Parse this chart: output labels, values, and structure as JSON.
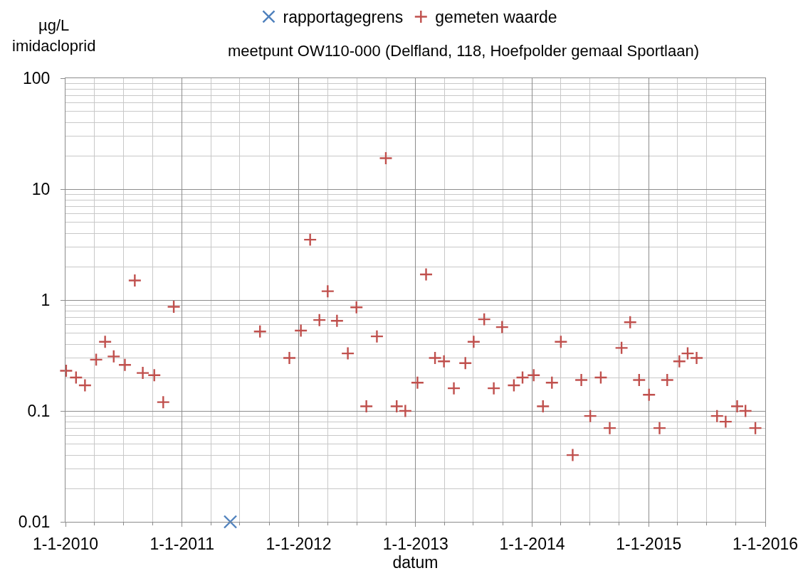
{
  "chart_data": {
    "type": "scatter",
    "title": "meetpunt OW110-000 (Delfland, 118, Hoefpolder gemaal Sportlaan)",
    "xlabel": "datum",
    "ylabel": "µg/L\nimidacloprid",
    "log": "y",
    "grid": true,
    "legend": "top",
    "xlim": [
      "2010-01-01",
      "2016-01-01"
    ],
    "xticks": [
      {
        "value": "2010-01-01",
        "label": "1-1-2010"
      },
      {
        "value": "2011-01-01",
        "label": "1-1-2011"
      },
      {
        "value": "2012-01-01",
        "label": "1-1-2012"
      },
      {
        "value": "2013-01-01",
        "label": "1-1-2013"
      },
      {
        "value": "2014-01-01",
        "label": "1-1-2014"
      },
      {
        "value": "2015-01-01",
        "label": "1-1-2015"
      },
      {
        "value": "2016-01-01",
        "label": "1-1-2016"
      }
    ],
    "ylim": [
      0.01,
      100
    ],
    "yticks": [
      0.01,
      0.1,
      1,
      10,
      100
    ],
    "series": [
      {
        "name": "rapportagegrens",
        "marker": "x",
        "color": "#4f81bd",
        "x": [
          "2011-06-01"
        ],
        "values": [
          0.01
        ]
      },
      {
        "name": "gemeten waarde",
        "marker": "cross",
        "color": "#c0504d",
        "x": [
          "2010-01-03",
          "2010-02-03",
          "2010-03-03",
          "2010-04-07",
          "2010-05-05",
          "2010-06-01",
          "2010-07-06",
          "2010-08-06",
          "2010-08-31",
          "2010-10-06",
          "2010-11-03",
          "2010-12-06",
          "2011-09-02",
          "2011-12-03",
          "2012-01-08",
          "2012-02-06",
          "2012-03-06",
          "2012-04-01",
          "2012-04-30",
          "2012-06-03",
          "2012-06-30",
          "2012-07-31",
          "2012-09-02",
          "2012-09-30",
          "2012-11-03",
          "2012-11-30",
          "2013-01-07",
          "2013-02-03",
          "2013-03-03",
          "2013-03-31",
          "2013-05-01",
          "2013-06-06",
          "2013-07-02",
          "2013-08-04",
          "2013-09-03",
          "2013-09-29",
          "2013-11-05",
          "2013-12-02",
          "2014-01-06",
          "2014-02-04",
          "2014-03-04",
          "2014-04-01",
          "2014-05-08",
          "2014-06-04",
          "2014-07-02",
          "2014-08-04",
          "2014-09-01",
          "2014-10-08",
          "2014-11-04",
          "2014-12-02",
          "2015-01-02",
          "2015-02-04",
          "2015-02-28",
          "2015-04-07",
          "2015-05-03",
          "2015-05-31",
          "2015-08-03",
          "2015-08-30",
          "2015-10-05",
          "2015-10-31",
          "2015-12-01"
        ],
        "values": [
          0.23,
          0.2,
          0.17,
          0.29,
          0.42,
          0.31,
          0.26,
          1.5,
          0.22,
          0.21,
          0.12,
          0.87,
          0.52,
          0.3,
          0.53,
          3.5,
          0.66,
          1.2,
          0.65,
          0.33,
          0.86,
          0.11,
          0.47,
          19,
          0.11,
          0.1,
          0.18,
          1.7,
          0.3,
          0.28,
          0.16,
          0.27,
          0.42,
          0.67,
          0.16,
          0.57,
          0.17,
          0.2,
          0.21,
          0.11,
          0.18,
          0.42,
          0.04,
          0.19,
          0.09,
          0.2,
          0.07,
          0.37,
          0.63,
          0.19,
          0.14,
          0.07,
          0.19,
          0.28,
          0.33,
          0.3,
          0.09,
          0.08,
          0.11,
          0.1,
          0.07
        ]
      }
    ]
  }
}
